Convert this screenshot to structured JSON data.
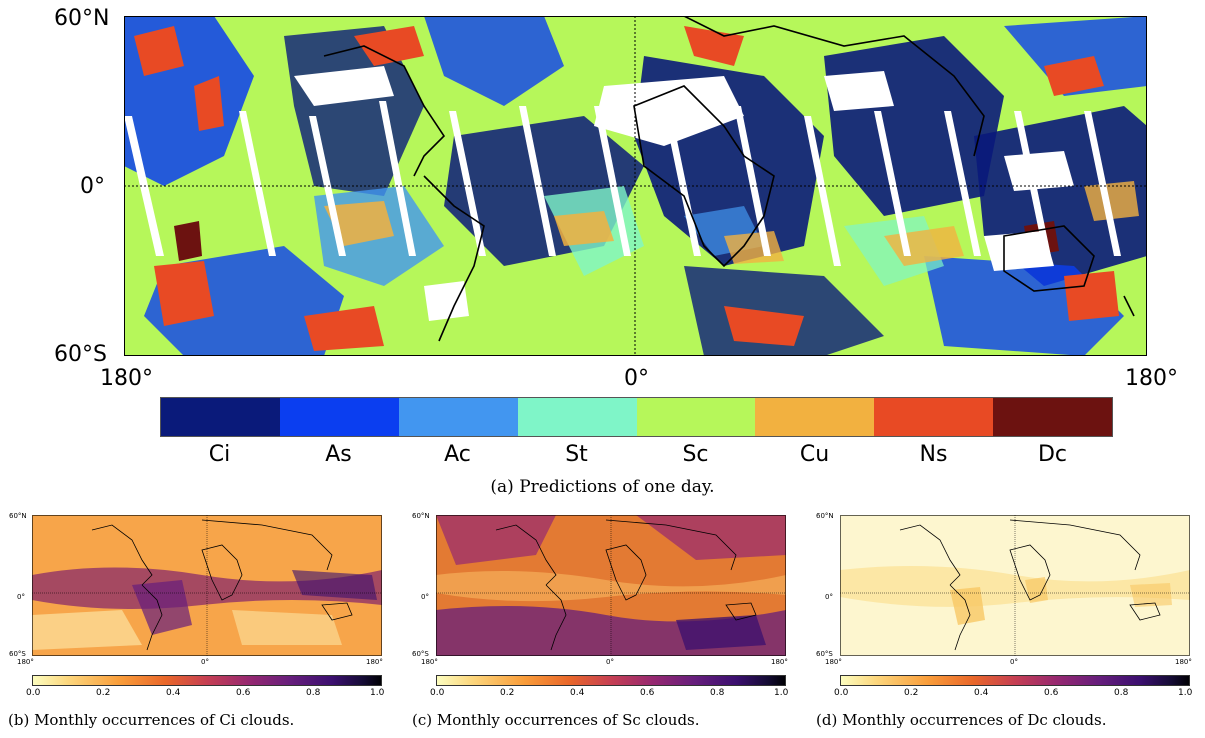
{
  "main_map": {
    "lat_labels": [
      "60°N",
      "0°",
      "60°S"
    ],
    "lon_labels": [
      "180°",
      "0°",
      "180°"
    ],
    "legend": {
      "classes": [
        "Ci",
        "As",
        "Ac",
        "St",
        "Sc",
        "Cu",
        "Ns",
        "Dc"
      ],
      "colors": [
        "#0a1a7a",
        "#0b3ef0",
        "#4296f0",
        "#7ff5c8",
        "#b6f75a",
        "#f2b140",
        "#e84a24",
        "#6c1210"
      ]
    },
    "caption": "(a) Predictions of one day."
  },
  "small_maps": [
    {
      "lat_labels": [
        "60°N",
        "0°",
        "60°S"
      ],
      "lon_labels": [
        "180°",
        "0°",
        "180°"
      ],
      "colorbar_ticks": [
        "0.0",
        "0.2",
        "0.4",
        "0.6",
        "0.8",
        "1.0"
      ],
      "caption": "(b) Monthly occurrences of Ci clouds.",
      "tone": "ci"
    },
    {
      "lat_labels": [
        "60°N",
        "0°",
        "60°S"
      ],
      "lon_labels": [
        "180°",
        "0°",
        "180°"
      ],
      "colorbar_ticks": [
        "0.0",
        "0.2",
        "0.4",
        "0.6",
        "0.8",
        "1.0"
      ],
      "caption": "(c) Monthly occurrences of Sc clouds.",
      "tone": "sc"
    },
    {
      "lat_labels": [
        "60°N",
        "0°",
        "60°S"
      ],
      "lon_labels": [
        "180°",
        "0°",
        "180°"
      ],
      "colorbar_ticks": [
        "0.0",
        "0.2",
        "0.4",
        "0.6",
        "0.8",
        "1.0"
      ],
      "caption": "(d) Monthly occurrences of Dc clouds.",
      "tone": "dc"
    }
  ]
}
